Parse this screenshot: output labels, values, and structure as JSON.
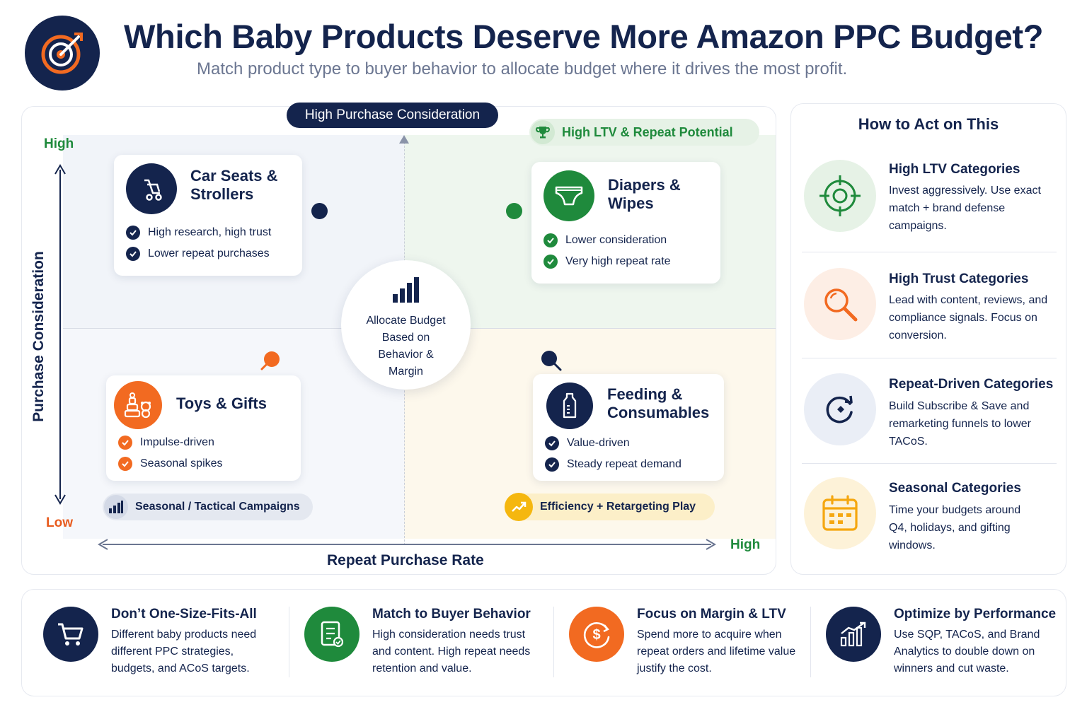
{
  "header": {
    "title": "Which Baby Products Deserve More Amazon PPC Budget?",
    "subtitle": "Match product type to buyer behavior to allocate budget where it drives the most profit.",
    "logo_icon": "target-icon"
  },
  "matrix": {
    "top_pill": "High Purchase Consideration",
    "y_high": "High",
    "y_low": "Low",
    "x_high": "High",
    "y_axis_title": "Purchase Consideration",
    "x_axis_title": "Repeat Purchase Rate",
    "ltv_tag": "High LTV & Repeat Potential",
    "center": "Allocate Budget Based on Behavior & Margin",
    "seasonal_tag": "Seasonal / Tactical Campaigns",
    "efficiency_tag": "Efficiency + Retargeting Play",
    "cards": [
      {
        "title": "Car Seats & Strollers",
        "points": [
          "High research, high trust",
          "Lower repeat purchases"
        ],
        "icon": "stroller-icon",
        "color": "#14244d"
      },
      {
        "title": "Diapers & Wipes",
        "points": [
          "Lower consideration",
          "Very high repeat rate"
        ],
        "icon": "diaper-icon",
        "color": "#1f8a3c"
      },
      {
        "title": "Toys & Gifts",
        "points": [
          "Impulse-driven",
          "Seasonal spikes"
        ],
        "icon": "toys-icon",
        "color": "#f26a21"
      },
      {
        "title": "Feeding & Consumables",
        "points": [
          "Value-driven",
          "Steady repeat demand"
        ],
        "icon": "bottle-icon",
        "color": "#14244d"
      }
    ]
  },
  "actions": {
    "title": "How to Act on This",
    "items": [
      {
        "heading": "High LTV Categories",
        "body": "Invest aggressively. Use exact match + brand defense campaigns.",
        "icon": "target-icon"
      },
      {
        "heading": "High Trust Categories",
        "body": "Lead with content, reviews, and compliance signals. Focus on conversion.",
        "icon": "magnifier-icon"
      },
      {
        "heading": "Repeat-Driven Categories",
        "body": "Build Subscribe & Save and remarketing funnels to lower TACoS.",
        "icon": "refresh-icon"
      },
      {
        "heading": "Seasonal Categories",
        "body": "Time your budgets around Q4, holidays, and gifting windows.",
        "icon": "calendar-icon"
      }
    ]
  },
  "bottom": [
    {
      "heading": "Don’t One-Size-Fits-All",
      "body": "Different baby products need different PPC strategies, budgets, and ACoS targets.",
      "icon": "cart-icon"
    },
    {
      "heading": "Match to Buyer Behavior",
      "body": "High consideration needs trust and content. High repeat needs retention and value.",
      "icon": "checklist-icon"
    },
    {
      "heading": "Focus on Margin & LTV",
      "body": "Spend more to acquire when repeat orders and lifetime value justify the cost.",
      "icon": "dollar-icon"
    },
    {
      "heading": "Optimize by Performance",
      "body": "Use SQP, TACoS, and Brand Analytics to double down on winners and cut waste.",
      "icon": "growth-chart-icon"
    }
  ]
}
